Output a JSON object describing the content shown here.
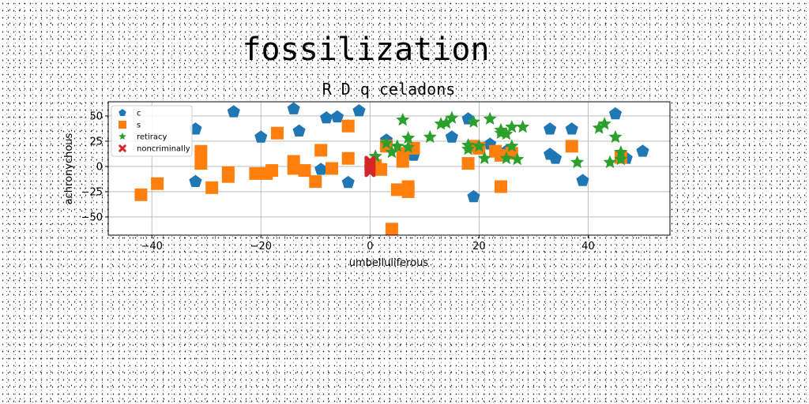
{
  "title": "fossilization",
  "chart_data": {
    "type": "scatter",
    "title": "R D q celadons",
    "xlabel": "umbelluliferous",
    "ylabel": "achronychous",
    "xlim": [
      -48,
      55
    ],
    "ylim": [
      -68,
      64
    ],
    "xticks": [
      -40,
      -20,
      0,
      20,
      40
    ],
    "yticks": [
      -50,
      -25,
      0,
      25,
      50
    ],
    "grid": true,
    "legend_position": "upper-left",
    "series": [
      {
        "name": "c",
        "marker": "pentagon",
        "color": "#1f77b4",
        "points": [
          [
            -32,
            37
          ],
          [
            -32,
            -15
          ],
          [
            -25,
            54
          ],
          [
            -20,
            29
          ],
          [
            -14,
            57
          ],
          [
            -13,
            35
          ],
          [
            -9,
            -3
          ],
          [
            -8,
            48
          ],
          [
            -6,
            49
          ],
          [
            -4,
            40
          ],
          [
            -4,
            -16
          ],
          [
            -2,
            55
          ],
          [
            3,
            26
          ],
          [
            8,
            11
          ],
          [
            15,
            29
          ],
          [
            18,
            47
          ],
          [
            19,
            -30
          ],
          [
            22,
            22
          ],
          [
            25,
            15
          ],
          [
            33,
            37
          ],
          [
            33,
            12
          ],
          [
            34,
            8
          ],
          [
            37,
            37
          ],
          [
            39,
            -14
          ],
          [
            45,
            52
          ],
          [
            47,
            8
          ],
          [
            50,
            15
          ]
        ]
      },
      {
        "name": "s",
        "marker": "square",
        "color": "#ff7f0e",
        "points": [
          [
            -42,
            -28
          ],
          [
            -39,
            -17
          ],
          [
            -31,
            3
          ],
          [
            -31,
            15
          ],
          [
            -29,
            -21
          ],
          [
            -26,
            -6
          ],
          [
            -26,
            -10
          ],
          [
            -21,
            -7
          ],
          [
            -19,
            -7
          ],
          [
            -18,
            -4
          ],
          [
            -17,
            33
          ],
          [
            -14,
            5
          ],
          [
            -14,
            -2
          ],
          [
            -12,
            -4
          ],
          [
            -10,
            -15
          ],
          [
            -9,
            16
          ],
          [
            -7,
            -2
          ],
          [
            -4,
            40
          ],
          [
            -4,
            8
          ],
          [
            1,
            1
          ],
          [
            2,
            -3
          ],
          [
            3,
            20
          ],
          [
            4,
            -62
          ],
          [
            5,
            -23
          ],
          [
            6,
            5
          ],
          [
            6,
            13
          ],
          [
            7,
            -20
          ],
          [
            7,
            -25
          ],
          [
            8,
            18
          ],
          [
            18,
            3
          ],
          [
            19,
            20
          ],
          [
            20,
            18
          ],
          [
            23,
            15
          ],
          [
            24,
            11
          ],
          [
            24,
            -20
          ],
          [
            26,
            13
          ],
          [
            37,
            20
          ],
          [
            46,
            9
          ]
        ]
      },
      {
        "name": "retiracy",
        "marker": "star",
        "color": "#2ca02c",
        "points": [
          [
            1,
            10
          ],
          [
            3,
            23
          ],
          [
            4,
            14
          ],
          [
            5,
            20
          ],
          [
            6,
            46
          ],
          [
            7,
            28
          ],
          [
            7,
            19
          ],
          [
            11,
            29
          ],
          [
            13,
            42
          ],
          [
            14,
            43
          ],
          [
            15,
            48
          ],
          [
            18,
            17
          ],
          [
            18,
            21
          ],
          [
            19,
            44
          ],
          [
            20,
            20
          ],
          [
            21,
            8
          ],
          [
            22,
            47
          ],
          [
            24,
            36
          ],
          [
            24,
            33
          ],
          [
            25,
            32
          ],
          [
            25,
            8
          ],
          [
            26,
            20
          ],
          [
            26,
            39
          ],
          [
            27,
            7
          ],
          [
            28,
            39
          ],
          [
            38,
            4
          ],
          [
            42,
            38
          ],
          [
            43,
            42
          ],
          [
            44,
            4
          ],
          [
            45,
            29
          ],
          [
            46,
            7
          ],
          [
            46,
            14
          ]
        ]
      },
      {
        "name": "noncriminally",
        "marker": "x",
        "color": "#d62728",
        "points": [
          [
            0,
            1
          ],
          [
            0,
            -2
          ],
          [
            0,
            5
          ],
          [
            0,
            -5
          ],
          [
            0,
            3
          ],
          [
            0,
            -3
          ],
          [
            0,
            0
          ],
          [
            0,
            4
          ]
        ]
      }
    ]
  }
}
